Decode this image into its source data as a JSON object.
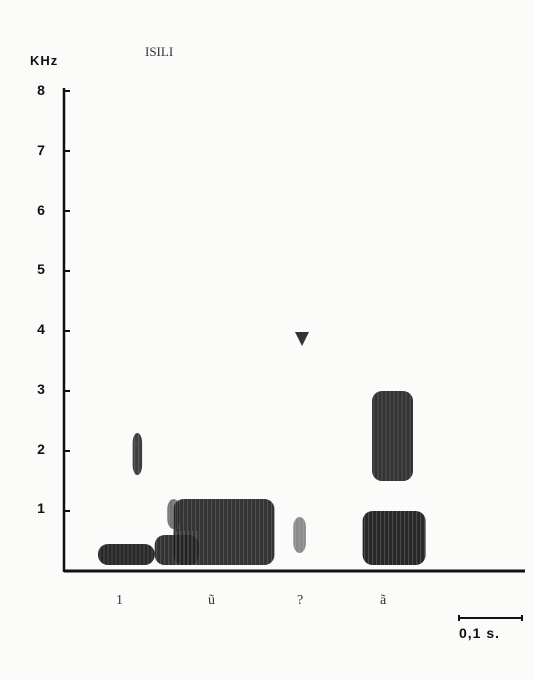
{
  "chart_data": {
    "type": "heatmap",
    "title": "ISILI",
    "ylabel": "KHz",
    "ylim": [
      0,
      8
    ],
    "yticks": [
      "1",
      "2",
      "3",
      "4",
      "5",
      "6",
      "7",
      "8"
    ],
    "segment_labels": [
      "1",
      "ũ",
      "?",
      "ã"
    ],
    "marker": "▼",
    "scale_bar_label": "0,1 s.",
    "energy_regions": [
      {
        "t": [
          0.0,
          0.9
        ],
        "khz": [
          0.1,
          0.45
        ],
        "level": 0.95
      },
      {
        "t": [
          0.9,
          1.6
        ],
        "khz": [
          0.1,
          0.6
        ],
        "level": 0.9
      },
      {
        "t": [
          1.2,
          2.8
        ],
        "khz": [
          0.1,
          1.2
        ],
        "level": 0.9
      },
      {
        "t": [
          0.55,
          0.7
        ],
        "khz": [
          1.6,
          2.3
        ],
        "level": 0.85
      },
      {
        "t": [
          1.1,
          1.3
        ],
        "khz": [
          0.7,
          1.2
        ],
        "level": 0.6
      },
      {
        "t": [
          4.2,
          5.2
        ],
        "khz": [
          0.1,
          1.0
        ],
        "level": 0.95
      },
      {
        "t": [
          4.35,
          5.0
        ],
        "khz": [
          1.5,
          3.0
        ],
        "level": 0.9
      },
      {
        "t": [
          3.1,
          3.3
        ],
        "khz": [
          0.3,
          0.9
        ],
        "level": 0.5
      }
    ],
    "time_unit_per_scale_bar": 0.1
  }
}
